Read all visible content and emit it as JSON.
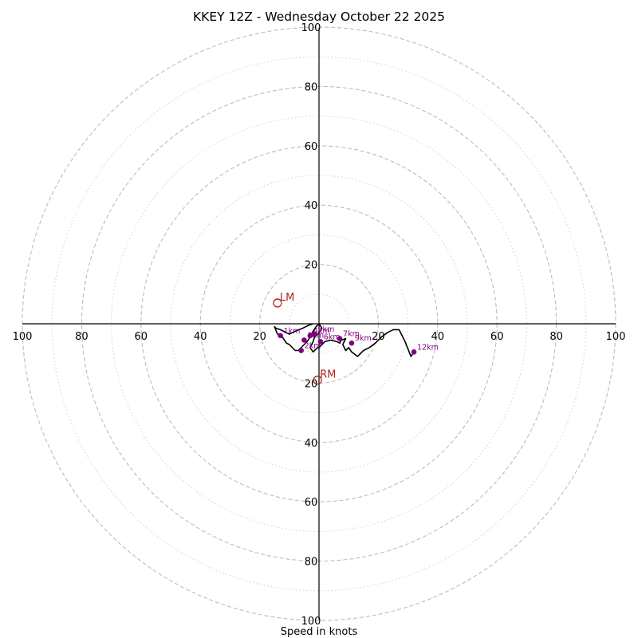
{
  "chart_data": {
    "type": "hodograph",
    "title": "KKEY 12Z - Wednesday October 22 2025",
    "xlabel": "Speed in knots",
    "range_knots": 100,
    "ring_major": [
      20,
      40,
      60,
      80,
      100
    ],
    "ring_minor": [
      10,
      30,
      50,
      70,
      90
    ],
    "x_ticks": [
      "100",
      "80",
      "60",
      "40",
      "20",
      "20",
      "40",
      "60",
      "80",
      "100"
    ],
    "y_ticks": [
      "100",
      "80",
      "60",
      "40",
      "20",
      "20",
      "40",
      "60",
      "80",
      "100"
    ],
    "hodograph_line": {
      "u": [
        -2,
        -3.5,
        -5.5,
        -8,
        -10,
        -13,
        -14.5,
        -15,
        -14,
        -13,
        -12,
        -11,
        -10,
        -8,
        -7,
        -5,
        -4,
        -3,
        -2,
        -1,
        0,
        1,
        0,
        -1,
        -1.5,
        -2,
        -3,
        -2,
        -1,
        0.5,
        2,
        4,
        6,
        7,
        7.5,
        9,
        8,
        9,
        10,
        11,
        13,
        15,
        17,
        19,
        21,
        23,
        25,
        27,
        29,
        31,
        32
      ],
      "v": [
        0,
        -0.5,
        -1.5,
        -2.5,
        -3.5,
        -2,
        -1.5,
        -1,
        -3.5,
        -3.5,
        -5,
        -6.5,
        -7,
        -9,
        -9,
        -7,
        -6,
        -4.5,
        -2.5,
        -1,
        0,
        -1.5,
        -3,
        -4,
        -4.5,
        -6,
        -8,
        -9.5,
        -8.5,
        -7.5,
        -6,
        -5.5,
        -6,
        -6.5,
        -5.5,
        -5,
        -7,
        -9,
        -8,
        -9.5,
        -11,
        -9,
        -8,
        -6.5,
        -4.5,
        -3,
        -2,
        -2,
        -6,
        -11,
        -9.5
      ]
    },
    "height_markers": [
      {
        "label": "1km",
        "u": -13,
        "v": -4
      },
      {
        "label": "2km",
        "u": -6,
        "v": -9
      },
      {
        "label": "3km",
        "u": -5,
        "v": -5.5
      },
      {
        "label": "4km",
        "u": -3,
        "v": -4
      },
      {
        "label": "5km",
        "u": -1.5,
        "v": -3.5
      },
      {
        "label": "6km",
        "u": 0.5,
        "v": -6
      },
      {
        "label": "7km",
        "u": 7,
        "v": -5
      },
      {
        "label": "9km",
        "u": 11,
        "v": -6.5
      },
      {
        "label": "12km",
        "u": 32,
        "v": -9.5
      }
    ],
    "storm_motion": [
      {
        "label": "LM",
        "u": -14,
        "v": 7
      },
      {
        "label": "RM",
        "u": -0.5,
        "v": -19
      }
    ],
    "colors": {
      "line": "#000000",
      "marker": "#800080",
      "storm_motion": "#b22222",
      "ring": "#bcbcbc"
    }
  }
}
